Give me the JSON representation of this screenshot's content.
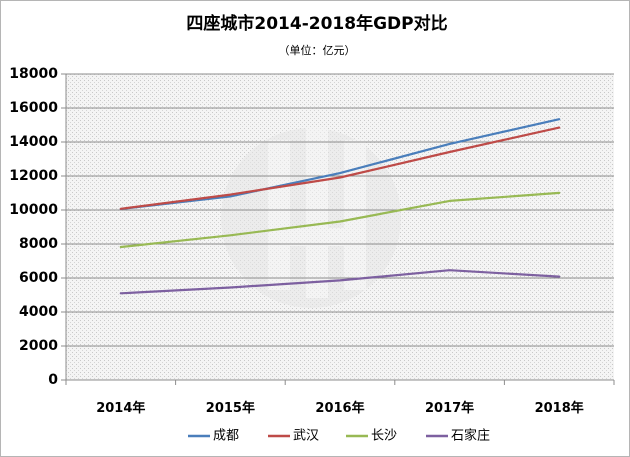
{
  "chart_data": {
    "type": "line",
    "title": "四座城市2014-2018年GDP对比",
    "subtitle": "（单位：亿元）",
    "categories": [
      "2014年",
      "2015年",
      "2016年",
      "2017年",
      "2018年"
    ],
    "ylim": [
      0,
      18000
    ],
    "yticks": [
      0,
      2000,
      4000,
      6000,
      8000,
      10000,
      12000,
      14000,
      16000,
      18000
    ],
    "grid": true,
    "legend_position": "bottom",
    "series": [
      {
        "name": "成都",
        "color": "#4a7ebb",
        "values": [
          10057,
          10801,
          12170,
          13889,
          15343
        ]
      },
      {
        "name": "武汉",
        "color": "#be4b48",
        "values": [
          10069,
          10906,
          11913,
          13410,
          14847
        ]
      },
      {
        "name": "长沙",
        "color": "#98b954",
        "values": [
          7825,
          8510,
          9324,
          10536,
          11003
        ]
      },
      {
        "name": "石家庄",
        "color": "#7d60a0",
        "values": [
          5100,
          5441,
          5857,
          6461,
          6083
        ]
      }
    ]
  }
}
